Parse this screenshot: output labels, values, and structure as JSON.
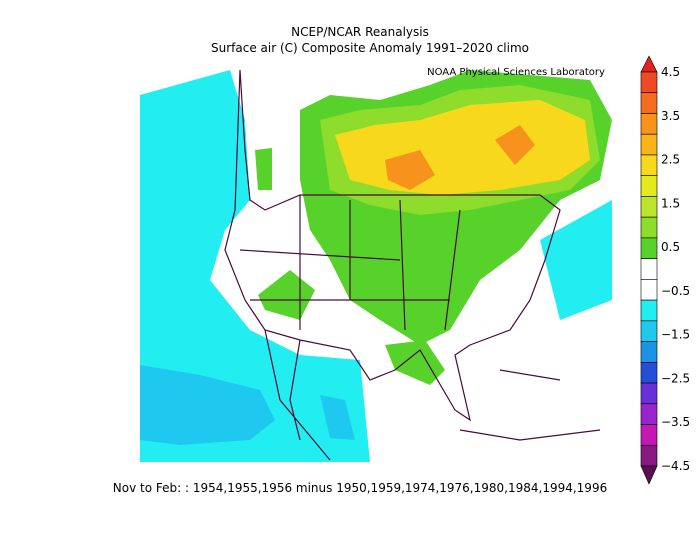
{
  "header": {
    "title": "NCEP/NCAR Reanalysis",
    "subtitle": "Surface air (C) Composite Anomaly 1991–2020 climo",
    "credit": "NOAA Physical Sciences Laboratory"
  },
  "colorbar": {
    "labels": [
      "4.5",
      "3.5",
      "2.5",
      "1.5",
      "0.5",
      "−0.5",
      "−1.5",
      "−2.5",
      "−3.5",
      "−4.5"
    ],
    "colors": [
      "#e42220",
      "#ee4a26",
      "#f46c1f",
      "#f7921c",
      "#fbb418",
      "#f8d81c",
      "#e4e81e",
      "#bce42a",
      "#8edc2c",
      "#56d22a",
      "#ffffff",
      "#ffffff",
      "#22eef2",
      "#1ec8ee",
      "#1c92e2",
      "#2450d6",
      "#6a30d8",
      "#9a24cc",
      "#c418b6",
      "#8a1882",
      "#5a1050"
    ]
  },
  "footer": {
    "text": "Nov to Feb: : 1954,1955,1956 minus 1950,1959,1974,1976,1980,1984,1994,1996"
  }
}
